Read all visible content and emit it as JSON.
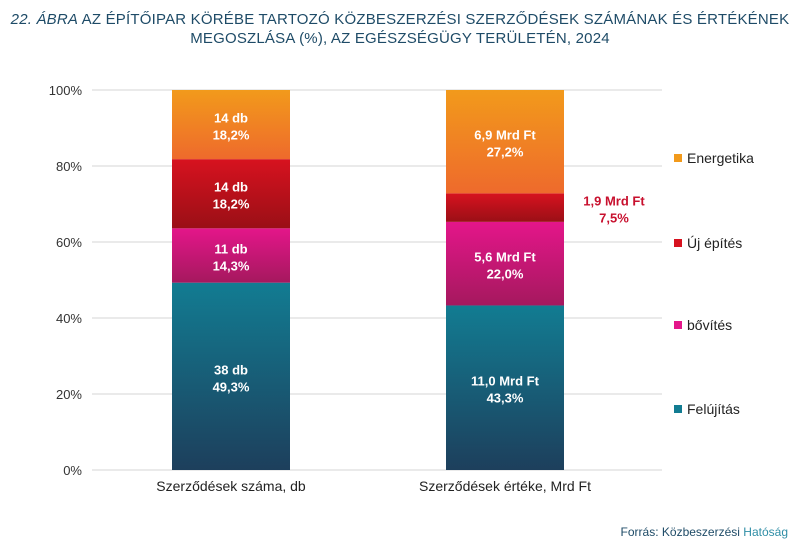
{
  "title": {
    "number": "22. ÁBRA",
    "line1": "AZ ÉPÍTŐIPAR KÖRÉBE TARTOZÓ KÖZBESZERZÉSI SZERZŐDÉSEK SZÁMÁNAK ÉS ÉRTÉKÉNEK",
    "line2": "MEGOSZLÁSA (%), AZ EGÉSZSÉGÜGY TERÜLETÉN, 2024"
  },
  "source": {
    "label": "Forrás:",
    "org": "Közbeszerzési",
    "org2": "Hatóság"
  },
  "chart_data": {
    "type": "bar",
    "stacked": true,
    "normalized": true,
    "categories": [
      "Szerződések száma, db",
      "Szerződések értéke, Mrd Ft"
    ],
    "ylim": [
      0,
      100
    ],
    "yticks": [
      "0%",
      "20%",
      "40%",
      "60%",
      "80%",
      "100%"
    ],
    "legend_position": "right",
    "series": [
      {
        "name": "Felújítás",
        "color": "#127c92",
        "color_dark": "#1d3f5c",
        "values": [
          49.3,
          43.3
        ],
        "labels": [
          [
            "38 db",
            "49,3%"
          ],
          [
            "11,0 Mrd Ft",
            "43,3%"
          ]
        ]
      },
      {
        "name": "bővítés",
        "color": "#e4168a",
        "color_dark": "#a5185e",
        "values": [
          14.3,
          22.0
        ],
        "labels": [
          [
            "11 db",
            "14,3%"
          ],
          [
            "5,6  Mrd Ft",
            "22,0%"
          ]
        ]
      },
      {
        "name": "Új építés",
        "color": "#d7121f",
        "color_dark": "#9a0f16",
        "values": [
          18.2,
          7.5
        ],
        "labels": [
          [
            "14 db",
            "18,2%"
          ],
          [
            "1,9 Mrd Ft",
            "7,5%"
          ]
        ]
      },
      {
        "name": "Energetika",
        "color": "#f29a1b",
        "color_dark": "#ee6a2c",
        "values": [
          18.2,
          27.2
        ],
        "labels": [
          [
            "14 db",
            "18,2%"
          ],
          [
            "6,9 Mrd Ft",
            "27,2%"
          ]
        ]
      }
    ]
  }
}
